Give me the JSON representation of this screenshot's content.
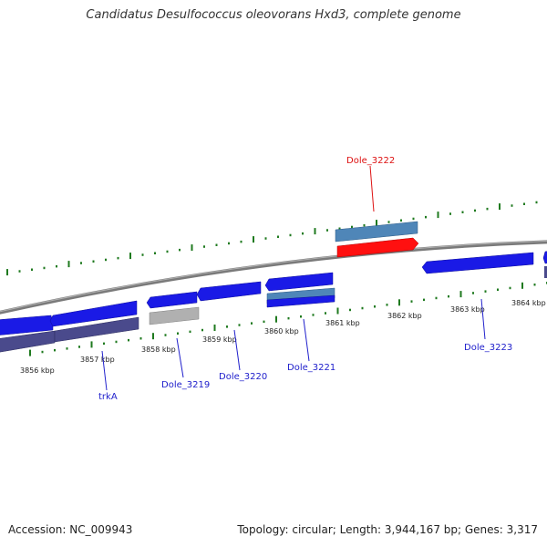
{
  "title": "Candidatus Desulfococcus oleovorans Hxd3, complete genome",
  "footer": {
    "accession": "Accession: NC_009943",
    "topology": "Topology: circular; Length: 3,944,167 bp; Genes: 3,317"
  },
  "colors": {
    "backbone": "#808080",
    "tick": "#1f7a1f",
    "gene_blue": "#1a1ae6",
    "gene_dark": "#4a4a8c",
    "gene_gray": "#b0b0b0",
    "gene_steel": "#4f86b8",
    "gene_red": "#ff1010",
    "label_blue": "#2020cc",
    "label_red": "#dd1111"
  },
  "tick_labels": [
    "3856 kbp",
    "3857 kbp",
    "3858 kbp",
    "3859 kbp",
    "3860 kbp",
    "3861 kbp",
    "3862 kbp",
    "3863 kbp",
    "3864 kbp"
  ],
  "gene_labels": [
    {
      "name": "trkA",
      "color": "#2020cc"
    },
    {
      "name": "Dole_3219",
      "color": "#2020cc"
    },
    {
      "name": "Dole_3220",
      "color": "#2020cc"
    },
    {
      "name": "Dole_3221",
      "color": "#2020cc"
    },
    {
      "name": "Dole_3222",
      "color": "#dd1111"
    },
    {
      "name": "Dole_3223",
      "color": "#2020cc"
    }
  ]
}
